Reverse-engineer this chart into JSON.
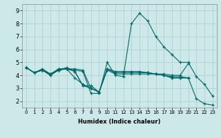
{
  "xlabel": "Humidex (Indice chaleur)",
  "xlim": [
    -0.5,
    23.5
  ],
  "ylim": [
    1.5,
    9.5
  ],
  "yticks": [
    2,
    3,
    4,
    5,
    6,
    7,
    8,
    9
  ],
  "xticks": [
    0,
    1,
    2,
    3,
    4,
    5,
    6,
    7,
    8,
    9,
    10,
    11,
    12,
    13,
    14,
    15,
    16,
    17,
    18,
    19,
    20,
    21,
    22,
    23
  ],
  "xtick_labels": [
    "0",
    "1",
    "2",
    "3",
    "4",
    "5",
    "6",
    "7",
    "8",
    "9",
    "10",
    "11",
    "12",
    "13",
    "14",
    "15",
    "16",
    "17",
    "18",
    "19",
    "20",
    "21",
    "22",
    "23"
  ],
  "background_color": "#cce8e8",
  "grid_color": "#aacccc",
  "line_color": "#006666",
  "lines": [
    {
      "x": [
        0,
        1,
        2,
        3,
        4,
        5,
        6,
        7,
        8,
        9,
        10,
        11,
        12,
        13,
        14,
        15,
        16,
        17,
        18,
        19,
        20,
        21,
        22,
        23
      ],
      "y": [
        4.6,
        4.2,
        4.4,
        4.0,
        4.4,
        4.5,
        4.4,
        4.3,
        2.6,
        2.6,
        5.0,
        4.0,
        3.9,
        8.0,
        8.8,
        8.2,
        7.0,
        6.2,
        5.6,
        5.0,
        5.0,
        3.9,
        3.3,
        2.4
      ]
    },
    {
      "x": [
        0,
        1,
        2,
        3,
        4,
        5,
        6,
        7,
        8,
        9,
        10,
        11,
        12,
        13,
        14,
        15,
        16,
        17,
        18,
        19,
        20
      ],
      "y": [
        4.6,
        4.2,
        4.4,
        4.0,
        4.5,
        4.5,
        4.5,
        4.4,
        3.0,
        2.7,
        4.4,
        4.1,
        4.1,
        4.1,
        4.1,
        4.1,
        4.1,
        4.1,
        4.0,
        4.0,
        4.9
      ]
    },
    {
      "x": [
        0,
        1,
        2,
        3,
        4,
        5,
        6,
        7,
        8,
        9,
        10,
        11,
        12,
        13,
        14,
        15,
        16,
        17,
        18,
        19,
        20
      ],
      "y": [
        4.6,
        4.2,
        4.4,
        4.1,
        4.4,
        4.5,
        4.3,
        3.2,
        3.2,
        2.7,
        4.5,
        4.2,
        4.2,
        4.2,
        4.2,
        4.2,
        4.1,
        4.0,
        3.9,
        3.9,
        3.8
      ]
    },
    {
      "x": [
        0,
        1,
        2,
        3,
        4,
        5,
        6,
        7,
        8,
        9,
        10,
        11,
        12,
        13,
        14,
        15,
        16,
        17,
        18,
        19,
        20
      ],
      "y": [
        4.6,
        4.2,
        4.5,
        4.1,
        4.5,
        4.5,
        3.8,
        3.3,
        3.0,
        2.7,
        4.5,
        4.3,
        4.3,
        4.3,
        4.3,
        4.2,
        4.1,
        4.0,
        3.8,
        3.8,
        3.8
      ]
    },
    {
      "x": [
        0,
        1,
        2,
        3,
        4,
        5,
        6,
        7,
        8,
        9,
        10,
        11,
        12,
        13,
        14,
        15,
        16,
        17,
        18,
        19,
        20,
        21,
        22,
        23
      ],
      "y": [
        4.6,
        4.2,
        4.4,
        4.1,
        4.4,
        4.6,
        4.3,
        3.2,
        3.0,
        2.7,
        4.5,
        4.2,
        4.2,
        4.2,
        4.2,
        4.2,
        4.1,
        4.0,
        3.8,
        3.8,
        3.8,
        2.2,
        1.8,
        1.7
      ]
    }
  ]
}
